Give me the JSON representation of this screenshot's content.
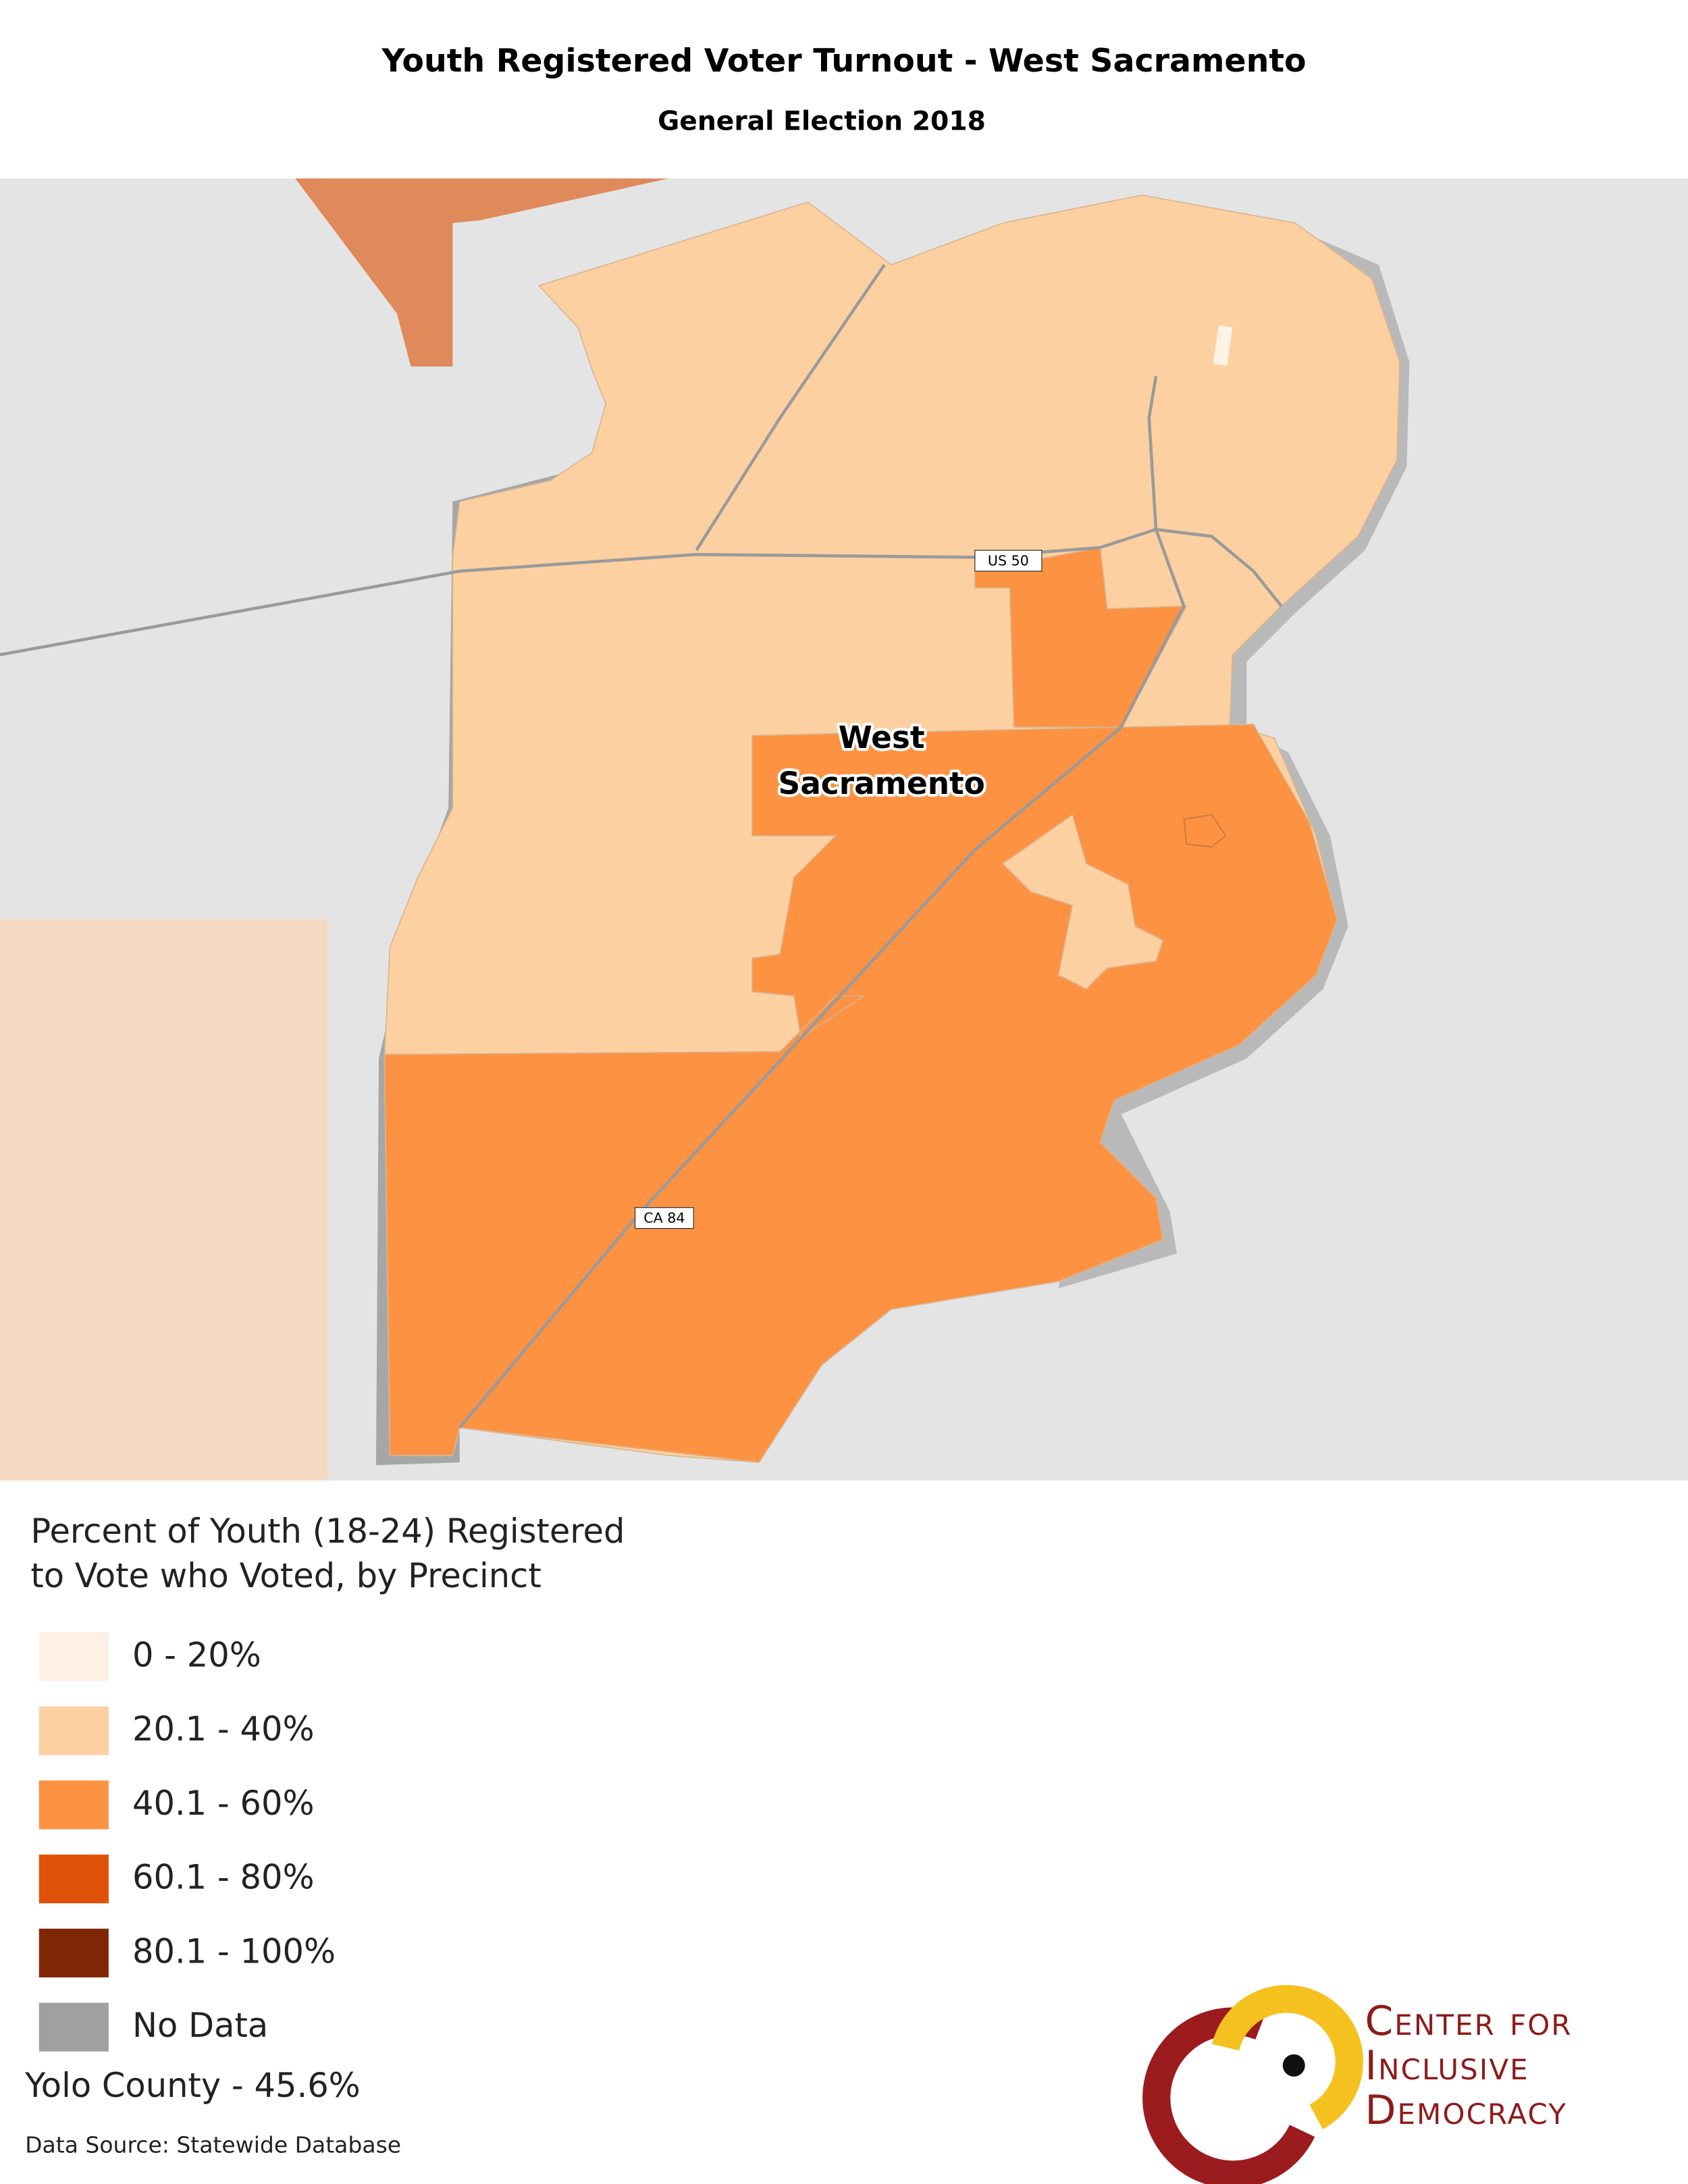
{
  "header": {
    "title": "Youth Registered Voter Turnout - West Sacramento",
    "subtitle": "General Election 2018"
  },
  "map": {
    "place_label": [
      "West",
      "Sacramento"
    ],
    "road_labels": [
      "US 50",
      "CA 84"
    ]
  },
  "legend": {
    "title": [
      "Percent of Youth (18-24) Registered",
      "to Vote who Voted, by Precinct"
    ],
    "items": [
      {
        "label": "0 - 20%",
        "color": "#fef0e3"
      },
      {
        "label": "20.1 - 40%",
        "color": "#fdd0a2"
      },
      {
        "label": "40.1 - 60%",
        "color": "#fd9243"
      },
      {
        "label": "60.1 - 80%",
        "color": "#e05209"
      },
      {
        "label": "80.1 - 100%",
        "color": "#7f2704"
      },
      {
        "label": "No Data",
        "color": "#a0a0a0"
      }
    ]
  },
  "footer": {
    "county": "Yolo County - 45.6%",
    "source": "Data Source: Statewide Database"
  },
  "logo": {
    "lines": [
      "Center for",
      "Inclusive",
      "Democracy"
    ]
  }
}
